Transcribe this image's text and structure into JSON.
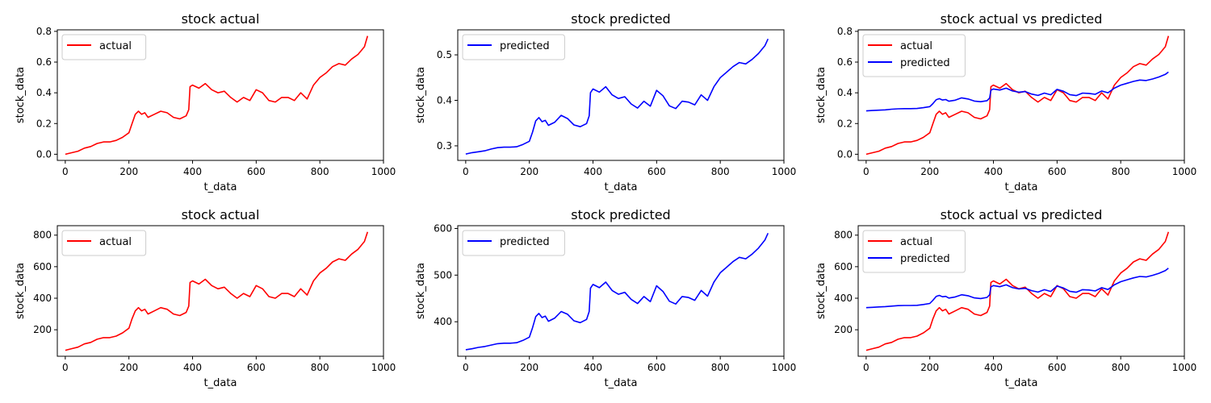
{
  "figure": {
    "colors": {
      "actual": "#ff0000",
      "predicted": "#0000ff"
    }
  },
  "chart_data": [
    {
      "type": "line",
      "title": "stock actual",
      "xlabel": "t_data",
      "ylabel": "stock_data",
      "xlim": [
        -25,
        1000
      ],
      "ylim": [
        -0.04,
        0.81
      ],
      "xticks": [
        0,
        200,
        400,
        600,
        800,
        1000
      ],
      "yticks": [
        0.0,
        0.2,
        0.4,
        0.6,
        0.8
      ],
      "ytick_decimals": 1,
      "legend": "top-left",
      "grid": false,
      "series": [
        {
          "name": "actual",
          "color": "#ff0000",
          "x": [
            0,
            20,
            40,
            60,
            80,
            100,
            120,
            140,
            160,
            180,
            200,
            210,
            220,
            230,
            240,
            250,
            260,
            280,
            300,
            320,
            340,
            360,
            380,
            388,
            392,
            400,
            420,
            440,
            460,
            480,
            500,
            520,
            540,
            560,
            580,
            600,
            620,
            640,
            660,
            680,
            700,
            720,
            740,
            760,
            780,
            800,
            820,
            840,
            860,
            880,
            900,
            920,
            940,
            950
          ],
          "y": [
            0.0,
            0.01,
            0.02,
            0.04,
            0.05,
            0.07,
            0.08,
            0.08,
            0.09,
            0.11,
            0.14,
            0.2,
            0.26,
            0.28,
            0.26,
            0.27,
            0.24,
            0.26,
            0.28,
            0.27,
            0.24,
            0.23,
            0.25,
            0.29,
            0.44,
            0.45,
            0.43,
            0.46,
            0.42,
            0.4,
            0.41,
            0.37,
            0.34,
            0.37,
            0.35,
            0.42,
            0.4,
            0.35,
            0.34,
            0.37,
            0.37,
            0.35,
            0.4,
            0.36,
            0.45,
            0.5,
            0.53,
            0.57,
            0.59,
            0.58,
            0.62,
            0.65,
            0.7,
            0.77
          ]
        }
      ]
    },
    {
      "type": "line",
      "title": "stock predicted",
      "xlabel": "t_data",
      "ylabel": "stock_data",
      "xlim": [
        -25,
        1000
      ],
      "ylim": [
        0.268,
        0.555
      ],
      "xticks": [
        0,
        200,
        400,
        600,
        800,
        1000
      ],
      "yticks": [
        0.3,
        0.4,
        0.5
      ],
      "ytick_decimals": 1,
      "legend": "top-left",
      "grid": false,
      "series": [
        {
          "name": "predicted",
          "color": "#0000ff",
          "x": [
            0,
            20,
            40,
            60,
            80,
            100,
            120,
            140,
            160,
            180,
            200,
            210,
            220,
            230,
            240,
            250,
            260,
            280,
            300,
            320,
            340,
            360,
            380,
            388,
            392,
            400,
            420,
            440,
            460,
            480,
            500,
            520,
            540,
            560,
            580,
            600,
            620,
            640,
            660,
            680,
            700,
            720,
            740,
            760,
            780,
            800,
            820,
            840,
            860,
            880,
            900,
            920,
            940,
            950
          ],
          "y": [
            0.282,
            0.285,
            0.287,
            0.289,
            0.293,
            0.296,
            0.297,
            0.297,
            0.298,
            0.303,
            0.31,
            0.33,
            0.355,
            0.362,
            0.353,
            0.356,
            0.345,
            0.352,
            0.367,
            0.36,
            0.346,
            0.342,
            0.349,
            0.366,
            0.417,
            0.425,
            0.418,
            0.43,
            0.412,
            0.404,
            0.408,
            0.392,
            0.383,
            0.398,
            0.387,
            0.422,
            0.41,
            0.388,
            0.382,
            0.398,
            0.396,
            0.39,
            0.412,
            0.4,
            0.43,
            0.45,
            0.462,
            0.474,
            0.483,
            0.48,
            0.49,
            0.503,
            0.52,
            0.535
          ]
        }
      ]
    },
    {
      "type": "line",
      "title": "stock actual vs predicted",
      "xlabel": "t_data",
      "ylabel": "stock_data",
      "xlim": [
        -25,
        1000
      ],
      "ylim": [
        -0.04,
        0.81
      ],
      "xticks": [
        0,
        200,
        400,
        600,
        800,
        1000
      ],
      "yticks": [
        0.0,
        0.2,
        0.4,
        0.6,
        0.8
      ],
      "ytick_decimals": 1,
      "legend": "top-left",
      "grid": false,
      "series": [
        {
          "name": "actual",
          "color": "#ff0000",
          "x": [
            0,
            20,
            40,
            60,
            80,
            100,
            120,
            140,
            160,
            180,
            200,
            210,
            220,
            230,
            240,
            250,
            260,
            280,
            300,
            320,
            340,
            360,
            380,
            388,
            392,
            400,
            420,
            440,
            460,
            480,
            500,
            520,
            540,
            560,
            580,
            600,
            620,
            640,
            660,
            680,
            700,
            720,
            740,
            760,
            780,
            800,
            820,
            840,
            860,
            880,
            900,
            920,
            940,
            950
          ],
          "y": [
            0.0,
            0.01,
            0.02,
            0.04,
            0.05,
            0.07,
            0.08,
            0.08,
            0.09,
            0.11,
            0.14,
            0.2,
            0.26,
            0.28,
            0.26,
            0.27,
            0.24,
            0.26,
            0.28,
            0.27,
            0.24,
            0.23,
            0.25,
            0.29,
            0.44,
            0.45,
            0.43,
            0.46,
            0.42,
            0.4,
            0.41,
            0.37,
            0.34,
            0.37,
            0.35,
            0.42,
            0.4,
            0.35,
            0.34,
            0.37,
            0.37,
            0.35,
            0.4,
            0.36,
            0.45,
            0.5,
            0.53,
            0.57,
            0.59,
            0.58,
            0.62,
            0.65,
            0.7,
            0.77
          ]
        },
        {
          "name": "predicted",
          "color": "#0000ff",
          "x": [
            0,
            20,
            40,
            60,
            80,
            100,
            120,
            140,
            160,
            180,
            200,
            210,
            220,
            230,
            240,
            250,
            260,
            280,
            300,
            320,
            340,
            360,
            380,
            388,
            392,
            400,
            420,
            440,
            460,
            480,
            500,
            520,
            540,
            560,
            580,
            600,
            620,
            640,
            660,
            680,
            700,
            720,
            740,
            760,
            780,
            800,
            820,
            840,
            860,
            880,
            900,
            920,
            940,
            950
          ],
          "y": [
            0.282,
            0.285,
            0.287,
            0.289,
            0.293,
            0.296,
            0.297,
            0.297,
            0.298,
            0.303,
            0.31,
            0.33,
            0.355,
            0.362,
            0.353,
            0.356,
            0.345,
            0.352,
            0.367,
            0.36,
            0.346,
            0.342,
            0.349,
            0.366,
            0.417,
            0.425,
            0.418,
            0.43,
            0.412,
            0.404,
            0.408,
            0.392,
            0.383,
            0.398,
            0.387,
            0.422,
            0.41,
            0.388,
            0.382,
            0.398,
            0.396,
            0.39,
            0.412,
            0.4,
            0.43,
            0.45,
            0.462,
            0.474,
            0.483,
            0.48,
            0.49,
            0.503,
            0.52,
            0.535
          ]
        }
      ]
    },
    {
      "type": "line",
      "title": "stock actual",
      "xlabel": "t_data",
      "ylabel": "stock_data",
      "xlim": [
        -25,
        1000
      ],
      "ylim": [
        32,
        860
      ],
      "xticks": [
        0,
        200,
        400,
        600,
        800,
        1000
      ],
      "yticks": [
        200,
        400,
        600,
        800
      ],
      "ytick_decimals": 0,
      "legend": "top-left",
      "grid": false,
      "series": [
        {
          "name": "actual",
          "color": "#ff0000",
          "x": [
            0,
            20,
            40,
            60,
            80,
            100,
            120,
            140,
            160,
            180,
            200,
            210,
            220,
            230,
            240,
            250,
            260,
            280,
            300,
            320,
            340,
            360,
            380,
            388,
            392,
            400,
            420,
            440,
            460,
            480,
            500,
            520,
            540,
            560,
            580,
            600,
            620,
            640,
            660,
            680,
            700,
            720,
            740,
            760,
            780,
            800,
            820,
            840,
            860,
            880,
            900,
            920,
            940,
            950
          ],
          "y": [
            70,
            80,
            90,
            110,
            120,
            140,
            150,
            150,
            160,
            180,
            210,
            270,
            320,
            340,
            320,
            330,
            300,
            320,
            340,
            330,
            300,
            290,
            310,
            350,
            500,
            510,
            490,
            520,
            480,
            460,
            470,
            430,
            400,
            430,
            410,
            480,
            460,
            410,
            400,
            430,
            430,
            410,
            460,
            420,
            510,
            560,
            590,
            630,
            650,
            640,
            680,
            710,
            760,
            820
          ]
        }
      ]
    },
    {
      "type": "line",
      "title": "stock predicted",
      "xlabel": "t_data",
      "ylabel": "stock_data",
      "xlim": [
        -25,
        1000
      ],
      "ylim": [
        326,
        606
      ],
      "xticks": [
        0,
        200,
        400,
        600,
        800,
        1000
      ],
      "yticks": [
        400,
        500,
        600
      ],
      "ytick_decimals": 0,
      "legend": "top-left",
      "grid": false,
      "series": [
        {
          "name": "predicted",
          "color": "#0000ff",
          "x": [
            0,
            20,
            40,
            60,
            80,
            100,
            120,
            140,
            160,
            180,
            200,
            210,
            220,
            230,
            240,
            250,
            260,
            280,
            300,
            320,
            340,
            360,
            380,
            388,
            392,
            400,
            420,
            440,
            460,
            480,
            500,
            520,
            540,
            560,
            580,
            600,
            620,
            640,
            660,
            680,
            700,
            720,
            740,
            760,
            780,
            800,
            820,
            840,
            860,
            880,
            900,
            920,
            940,
            950
          ],
          "y": [
            340,
            342,
            345,
            347,
            350,
            353,
            354,
            354,
            355,
            360,
            367,
            387,
            411,
            418,
            409,
            412,
            401,
            408,
            422,
            416,
            402,
            398,
            405,
            422,
            472,
            480,
            473,
            485,
            467,
            459,
            463,
            448,
            439,
            454,
            443,
            477,
            465,
            444,
            438,
            454,
            452,
            446,
            467,
            455,
            485,
            505,
            517,
            529,
            538,
            535,
            545,
            558,
            575,
            590
          ]
        }
      ]
    },
    {
      "type": "line",
      "title": "stock actual vs predicted",
      "xlabel": "t_data",
      "ylabel": "stock_data",
      "xlim": [
        -25,
        1000
      ],
      "ylim": [
        32,
        860
      ],
      "xticks": [
        0,
        200,
        400,
        600,
        800,
        1000
      ],
      "yticks": [
        200,
        400,
        600,
        800
      ],
      "ytick_decimals": 0,
      "legend": "top-left",
      "grid": false,
      "series": [
        {
          "name": "actual",
          "color": "#ff0000",
          "x": [
            0,
            20,
            40,
            60,
            80,
            100,
            120,
            140,
            160,
            180,
            200,
            210,
            220,
            230,
            240,
            250,
            260,
            280,
            300,
            320,
            340,
            360,
            380,
            388,
            392,
            400,
            420,
            440,
            460,
            480,
            500,
            520,
            540,
            560,
            580,
            600,
            620,
            640,
            660,
            680,
            700,
            720,
            740,
            760,
            780,
            800,
            820,
            840,
            860,
            880,
            900,
            920,
            940,
            950
          ],
          "y": [
            70,
            80,
            90,
            110,
            120,
            140,
            150,
            150,
            160,
            180,
            210,
            270,
            320,
            340,
            320,
            330,
            300,
            320,
            340,
            330,
            300,
            290,
            310,
            350,
            500,
            510,
            490,
            520,
            480,
            460,
            470,
            430,
            400,
            430,
            410,
            480,
            460,
            410,
            400,
            430,
            430,
            410,
            460,
            420,
            510,
            560,
            590,
            630,
            650,
            640,
            680,
            710,
            760,
            820
          ]
        },
        {
          "name": "predicted",
          "color": "#0000ff",
          "x": [
            0,
            20,
            40,
            60,
            80,
            100,
            120,
            140,
            160,
            180,
            200,
            210,
            220,
            230,
            240,
            250,
            260,
            280,
            300,
            320,
            340,
            360,
            380,
            388,
            392,
            400,
            420,
            440,
            460,
            480,
            500,
            520,
            540,
            560,
            580,
            600,
            620,
            640,
            660,
            680,
            700,
            720,
            740,
            760,
            780,
            800,
            820,
            840,
            860,
            880,
            900,
            920,
            940,
            950
          ],
          "y": [
            340,
            342,
            345,
            347,
            350,
            353,
            354,
            354,
            355,
            360,
            367,
            387,
            411,
            418,
            409,
            412,
            401,
            408,
            422,
            416,
            402,
            398,
            405,
            422,
            472,
            480,
            473,
            485,
            467,
            459,
            463,
            448,
            439,
            454,
            443,
            477,
            465,
            444,
            438,
            454,
            452,
            446,
            467,
            455,
            485,
            505,
            517,
            529,
            538,
            535,
            545,
            558,
            575,
            590
          ]
        }
      ]
    }
  ]
}
